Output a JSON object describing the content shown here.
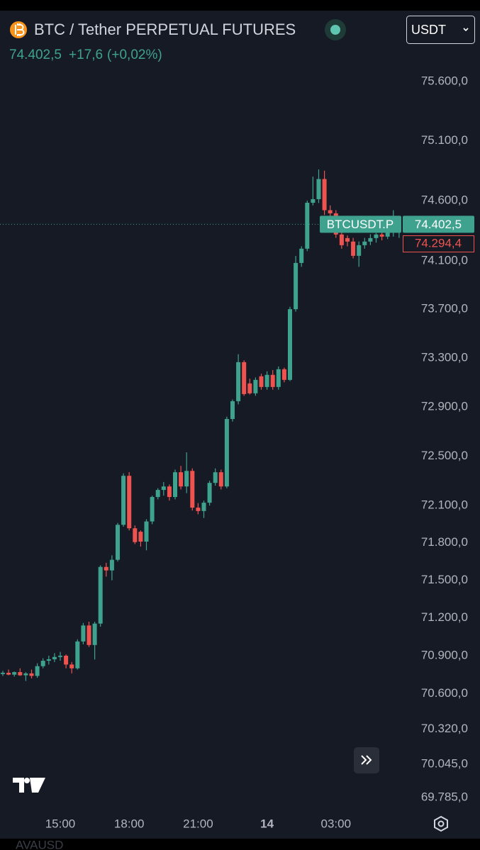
{
  "header": {
    "title": "BTC / Tether PERPETUAL FUTURES",
    "price": "74.402,5",
    "change": "+17,6",
    "change_pct": "(+0,02%)",
    "currency": "USDT"
  },
  "labels": {
    "symbol": "BTCUSDT.P",
    "last": "74.402,5",
    "bid": "74.294,4"
  },
  "footer": "AVAUSD",
  "chart_data": {
    "type": "candlestick",
    "log_scale": true,
    "grid": false,
    "up_color": "#3fa28f",
    "down_color": "#ef5350",
    "categories": [
      null,
      null,
      null,
      null,
      null,
      null,
      null,
      null,
      null,
      null,
      "15:00",
      null,
      null,
      null,
      null,
      null,
      null,
      null,
      null,
      null,
      null,
      null,
      "18:00",
      null,
      null,
      null,
      null,
      null,
      null,
      null,
      null,
      null,
      null,
      null,
      "21:00",
      null,
      null,
      null,
      null,
      null,
      null,
      null,
      null,
      null,
      null,
      null,
      "14",
      null,
      null,
      null,
      null,
      null,
      null,
      null,
      null,
      null,
      null,
      null,
      "03:00",
      null,
      null,
      null,
      null,
      null,
      null,
      null,
      null,
      null,
      null,
      null
    ],
    "open": [
      70755,
      70765,
      70750,
      70770,
      70745,
      70760,
      70740,
      70817,
      70860,
      70872,
      70890,
      70900,
      70830,
      70800,
      71013,
      71140,
      70985,
      71155,
      71607,
      71579,
      71664,
      71945,
      72340,
      71917,
      71889,
      71810,
      71972,
      72169,
      72226,
      72254,
      72169,
      72369,
      72254,
      72380,
      72083,
      72056,
      72123,
      72283,
      72369,
      72254,
      72801,
      72946,
      73265,
      73091,
      73010,
      73149,
      73062,
      73161,
      73062,
      73207,
      73120,
      73700,
      74082,
      74200,
      74582,
      74612,
      74780,
      74520,
      74494,
      74318,
      74288,
      74259,
      74141,
      74229,
      74259,
      74288,
      74318,
      74300,
      74340,
      74388
    ],
    "high": [
      70780,
      70790,
      70775,
      70800,
      70770,
      70790,
      70840,
      70880,
      70900,
      70920,
      70930,
      70910,
      70850,
      71030,
      71160,
      71170,
      71170,
      71620,
      71640,
      71700,
      71960,
      72360,
      72370,
      71940,
      71900,
      71990,
      72180,
      72240,
      72290,
      72270,
      72390,
      72420,
      72530,
      72400,
      72120,
      72140,
      72300,
      72400,
      72390,
      72820,
      72960,
      73330,
      73280,
      73130,
      73140,
      73170,
      73190,
      73200,
      73230,
      73220,
      73720,
      74140,
      74220,
      74600,
      74800,
      74860,
      74850,
      74560,
      74520,
      74360,
      74310,
      74290,
      74260,
      74290,
      74320,
      74330,
      74360,
      74360,
      74520,
      74420
    ],
    "low": [
      70740,
      70745,
      70735,
      70740,
      70700,
      70720,
      70725,
      70800,
      70830,
      70850,
      70860,
      70800,
      70760,
      70790,
      70990,
      70970,
      70870,
      71130,
      71530,
      71500,
      71650,
      71930,
      71900,
      71790,
      71770,
      71740,
      71950,
      72150,
      72180,
      72140,
      72150,
      72230,
      72200,
      72060,
      72030,
      72000,
      72100,
      72260,
      72230,
      72240,
      72780,
      72920,
      72990,
      73000,
      72990,
      73040,
      73040,
      73040,
      73040,
      73100,
      73110,
      73680,
      74050,
      74180,
      74560,
      74580,
      74480,
      74440,
      74290,
      74200,
      74220,
      74120,
      74050,
      74200,
      74230,
      74250,
      74270,
      74280,
      74300,
      74290
    ],
    "close": [
      70765,
      70750,
      70770,
      70745,
      70760,
      70740,
      70817,
      70860,
      70872,
      70890,
      70900,
      70830,
      70800,
      71013,
      71140,
      70985,
      71155,
      71607,
      71579,
      71664,
      71945,
      72340,
      71917,
      71806,
      71810,
      71972,
      72169,
      72226,
      72254,
      72169,
      72369,
      72254,
      72380,
      72083,
      72056,
      72123,
      72283,
      72369,
      72254,
      72801,
      72946,
      73265,
      73004,
      73010,
      73120,
      73062,
      73161,
      73062,
      73207,
      73120,
      73700,
      74082,
      74200,
      74582,
      74612,
      74780,
      74520,
      74494,
      74318,
      74229,
      74259,
      74141,
      74229,
      74259,
      74288,
      74318,
      74300,
      74340,
      74388,
      74402.5
    ],
    "ylim": [
      69702,
      76201
    ],
    "yticks": [
      {
        "value": 75600,
        "label": "75.600,0"
      },
      {
        "value": 75100,
        "label": "75.100,0"
      },
      {
        "value": 74600,
        "label": "74.600,0"
      },
      {
        "value": 74100,
        "label": "74.100,0"
      },
      {
        "value": 73700,
        "label": "73.700,0"
      },
      {
        "value": 73300,
        "label": "73.300,0"
      },
      {
        "value": 72900,
        "label": "72.900,0"
      },
      {
        "value": 72500,
        "label": "72.500,0"
      },
      {
        "value": 72100,
        "label": "72.100,0"
      },
      {
        "value": 71800,
        "label": "71.800,0"
      },
      {
        "value": 71500,
        "label": "71.500,0"
      },
      {
        "value": 71200,
        "label": "71.200,0"
      },
      {
        "value": 70900,
        "label": "70.900,0"
      },
      {
        "value": 70600,
        "label": "70.600,0"
      },
      {
        "value": 70320,
        "label": "70.320,0"
      },
      {
        "value": 70045,
        "label": "70.045,0"
      },
      {
        "value": 69785,
        "label": "69.785,0"
      }
    ]
  }
}
